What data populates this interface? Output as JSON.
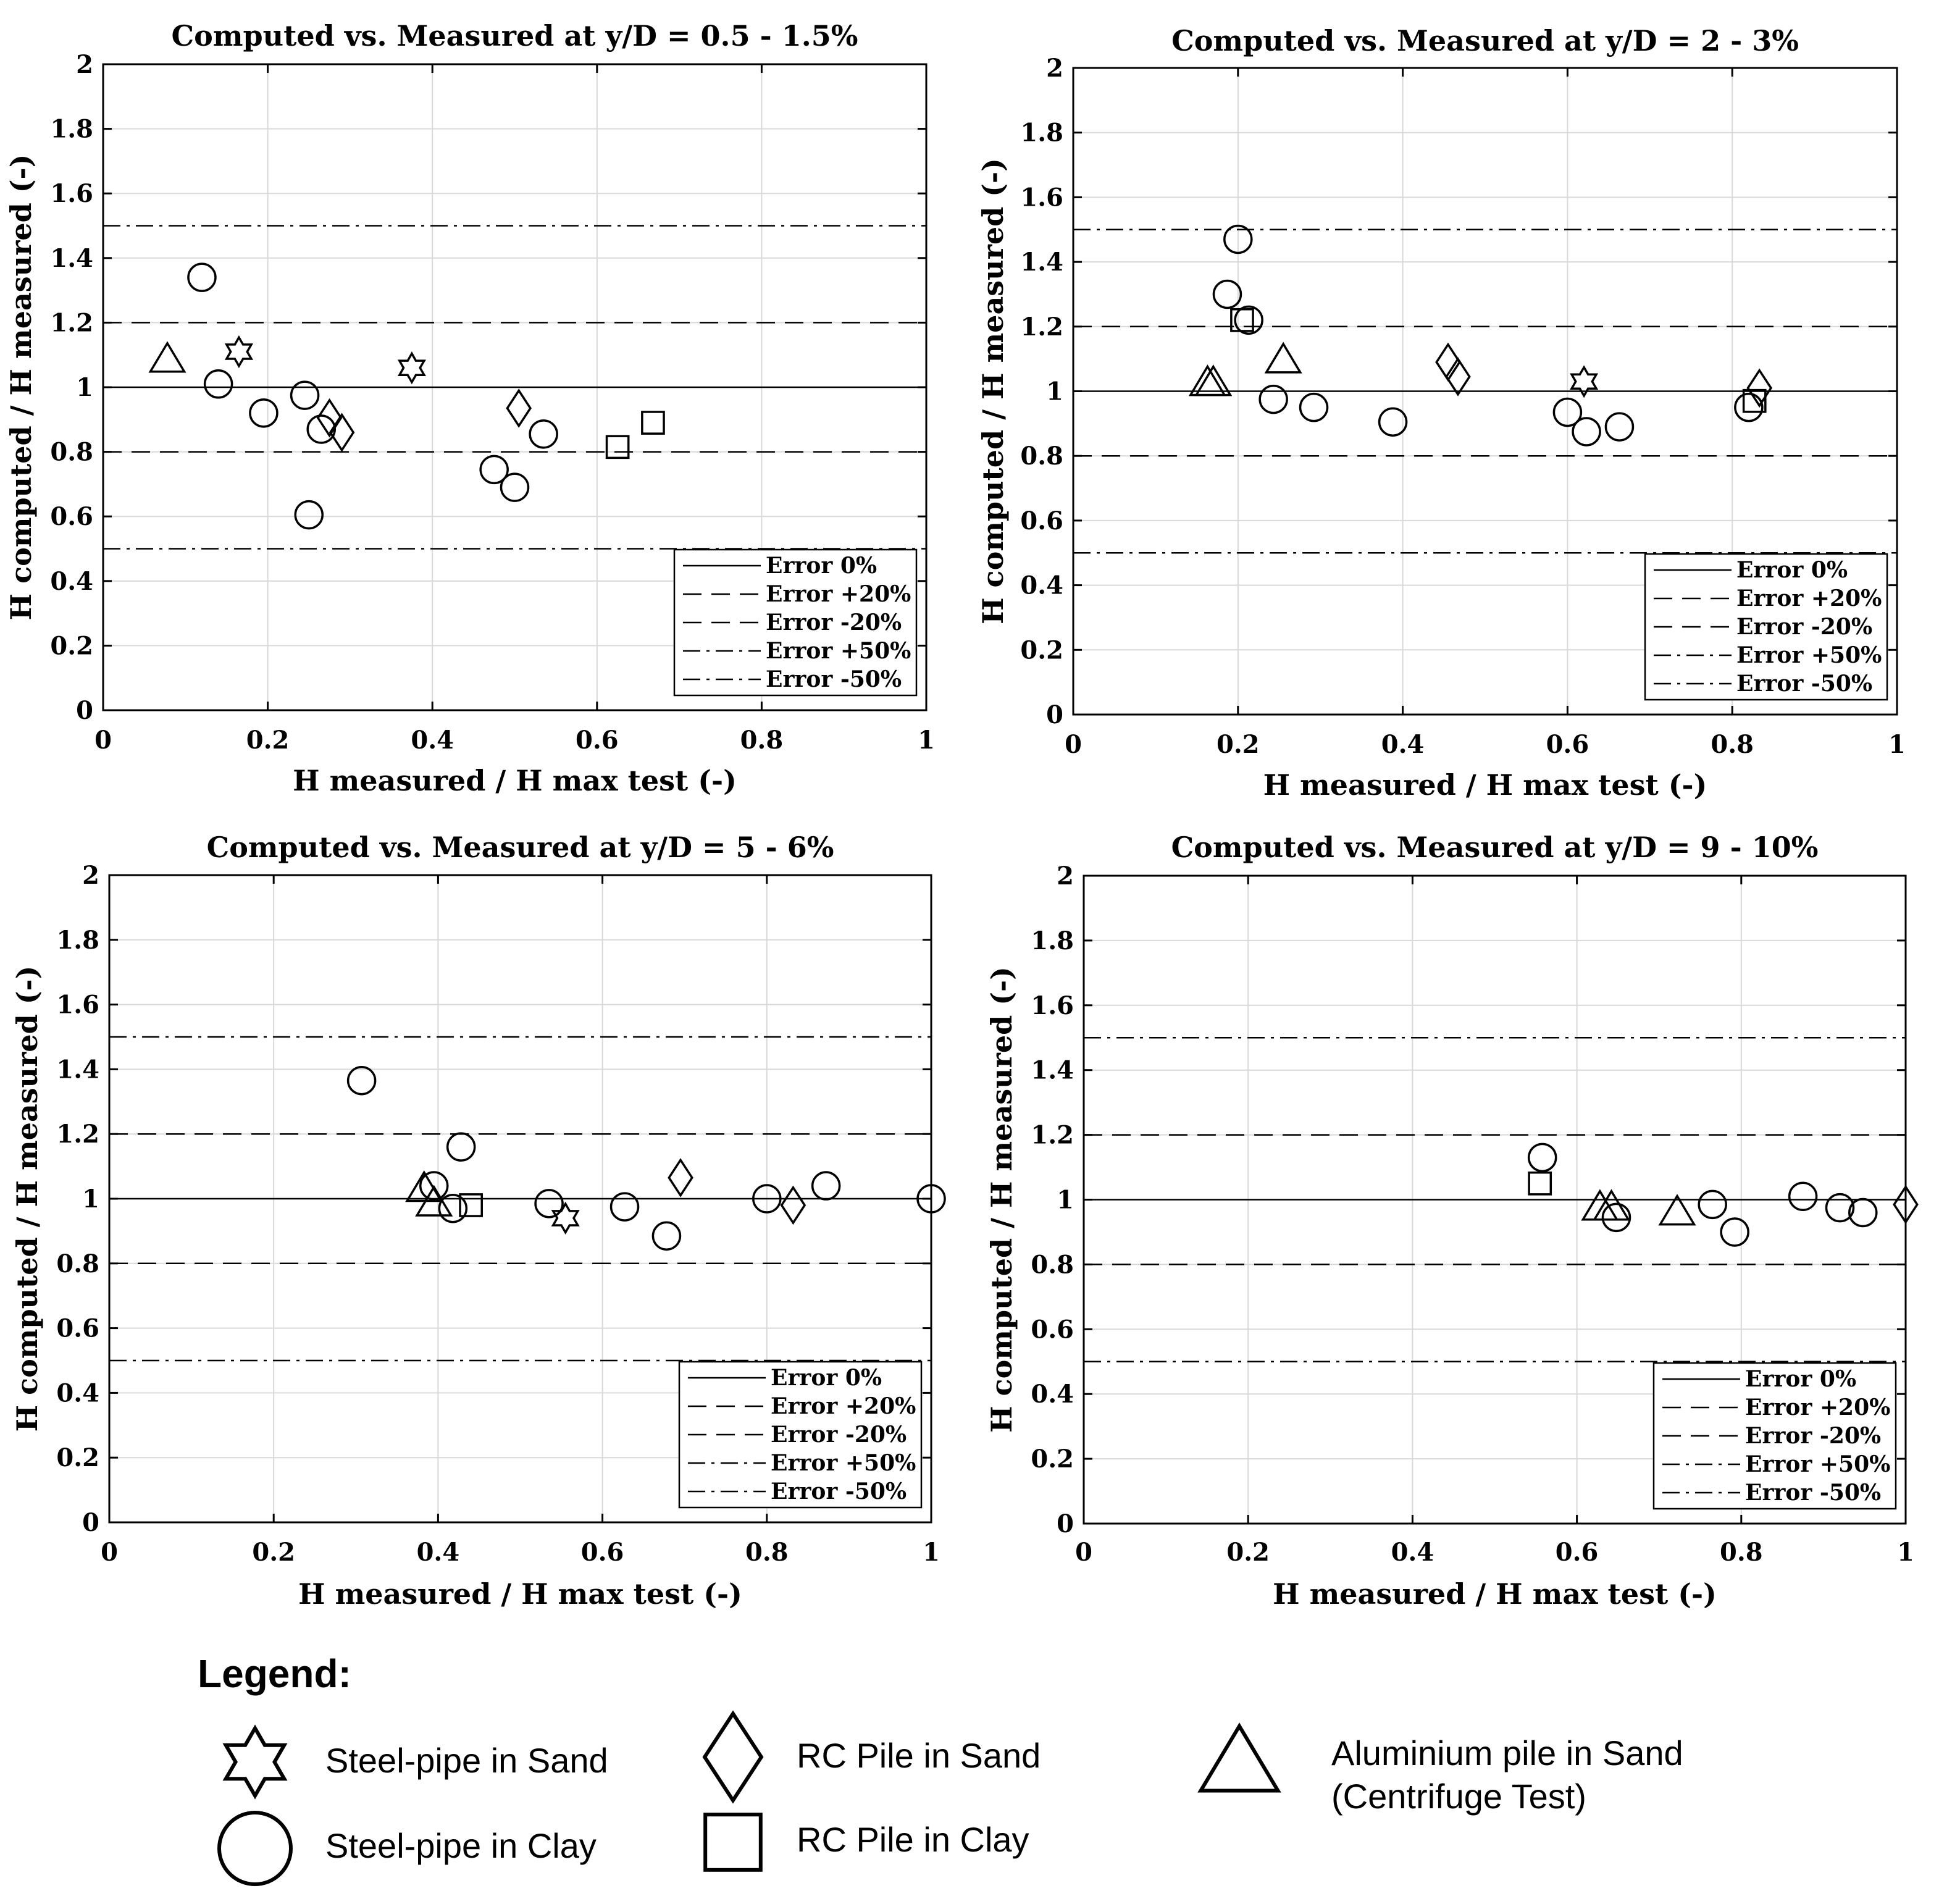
{
  "colors": {
    "ink": "#000000",
    "grid": "#d9d9d9",
    "background": "#ffffff"
  },
  "marker_types": {
    "star": "star-icon",
    "circle": "circle-icon",
    "diamond": "diamond-icon",
    "square": "square-icon",
    "triangle": "triangle-icon"
  },
  "reference_lines": [
    {
      "label": "Error 0%",
      "y": 1.0,
      "style": "solid"
    },
    {
      "label": "Error +20%",
      "y": 1.2,
      "style": "dashed"
    },
    {
      "label": "Error -20%",
      "y": 0.8,
      "style": "dashed"
    },
    {
      "label": "Error +50%",
      "y": 1.5,
      "style": "dashdot"
    },
    {
      "label": "Error -50%",
      "y": 0.5,
      "style": "dashdot"
    }
  ],
  "chart_data": [
    {
      "type": "scatter",
      "title": "Computed vs. Measured at y/D = 0.5 - 1.5%",
      "xlabel": "H measured / H max test (-)",
      "ylabel": "H computed / H measured (-)",
      "xlim": [
        0,
        1
      ],
      "ylim": [
        0,
        2
      ],
      "xticks": [
        0,
        0.2,
        0.4,
        0.6,
        0.8,
        1
      ],
      "xtick_labels": [
        "0",
        "0.2",
        "0.4",
        "0.6",
        "0.8",
        "1"
      ],
      "yticks": [
        0,
        0.2,
        0.4,
        0.6,
        0.8,
        1,
        1.2,
        1.4,
        1.6,
        1.8,
        2
      ],
      "ytick_labels": [
        "0",
        "0.2",
        "0.4",
        "0.6",
        "0.8",
        "1",
        "1.2",
        "1.4",
        "1.6",
        "1.8",
        "2"
      ],
      "grid": true,
      "legend_position": "bottom-right",
      "series": [
        {
          "name": "Steel-pipe in Sand",
          "marker": "star",
          "x": [
            0.165,
            0.375
          ],
          "y": [
            1.11,
            1.06
          ]
        },
        {
          "name": "Steel-pipe in Clay",
          "marker": "circle",
          "x": [
            0.12,
            0.14,
            0.195,
            0.245,
            0.265,
            0.25,
            0.475,
            0.5,
            0.535
          ],
          "y": [
            1.34,
            1.01,
            0.92,
            0.975,
            0.87,
            0.605,
            0.745,
            0.69,
            0.855
          ]
        },
        {
          "name": "RC Pile in Sand",
          "marker": "diamond",
          "x": [
            0.275,
            0.29,
            0.505
          ],
          "y": [
            0.905,
            0.86,
            0.935
          ]
        },
        {
          "name": "RC Pile in Clay",
          "marker": "square",
          "x": [
            0.625,
            0.668
          ],
          "y": [
            0.815,
            0.89
          ]
        },
        {
          "name": "Aluminium pile in Sand (Centrifuge Test)",
          "marker": "triangle",
          "x": [
            0.078
          ],
          "y": [
            1.09
          ]
        }
      ]
    },
    {
      "type": "scatter",
      "title": "Computed vs. Measured at y/D = 2 - 3%",
      "xlabel": "H measured / H max test (-)",
      "ylabel": "H computed / H measured (-)",
      "xlim": [
        0,
        1
      ],
      "ylim": [
        0,
        2
      ],
      "xticks": [
        0,
        0.2,
        0.4,
        0.6,
        0.8,
        1
      ],
      "xtick_labels": [
        "0",
        "0.2",
        "0.4",
        "0.6",
        "0.8",
        "1"
      ],
      "yticks": [
        0,
        0.2,
        0.4,
        0.6,
        0.8,
        1,
        1.2,
        1.4,
        1.6,
        1.8,
        2
      ],
      "ytick_labels": [
        "0",
        "0.2",
        "0.4",
        "0.6",
        "0.8",
        "1",
        "1.2",
        "1.4",
        "1.6",
        "1.8",
        "2"
      ],
      "grid": true,
      "legend_position": "bottom-right",
      "series": [
        {
          "name": "Steel-pipe in Sand",
          "marker": "star",
          "x": [
            0.62
          ],
          "y": [
            1.03
          ]
        },
        {
          "name": "Steel-pipe in Clay",
          "marker": "circle",
          "x": [
            0.2,
            0.187,
            0.213,
            0.243,
            0.292,
            0.388,
            0.6,
            0.623,
            0.663,
            0.82
          ],
          "y": [
            1.47,
            1.3,
            1.22,
            0.975,
            0.95,
            0.905,
            0.935,
            0.875,
            0.89,
            0.95
          ]
        },
        {
          "name": "RC Pile in Sand",
          "marker": "diamond",
          "x": [
            0.455,
            0.467,
            0.833
          ],
          "y": [
            1.09,
            1.045,
            1.01
          ]
        },
        {
          "name": "RC Pile in Clay",
          "marker": "square",
          "x": [
            0.205,
            0.827
          ],
          "y": [
            1.22,
            0.97
          ]
        },
        {
          "name": "Aluminium pile in Sand (Centrifuge Test)",
          "marker": "triangle",
          "x": [
            0.163,
            0.17,
            0.255
          ],
          "y": [
            1.03,
            1.03,
            1.1
          ]
        }
      ]
    },
    {
      "type": "scatter",
      "title": "Computed vs. Measured at y/D = 5 - 6%",
      "xlabel": "H measured / H max test (-)",
      "ylabel": "H computed / H measured (-)",
      "xlim": [
        0,
        1
      ],
      "ylim": [
        0,
        2
      ],
      "xticks": [
        0,
        0.2,
        0.4,
        0.6,
        0.8,
        1
      ],
      "xtick_labels": [
        "0",
        "0.2",
        "0.4",
        "0.6",
        "0.8",
        "1"
      ],
      "yticks": [
        0,
        0.2,
        0.4,
        0.6,
        0.8,
        1,
        1.2,
        1.4,
        1.6,
        1.8,
        2
      ],
      "ytick_labels": [
        "0",
        "0.2",
        "0.4",
        "0.6",
        "0.8",
        "1",
        "1.2",
        "1.4",
        "1.6",
        "1.8",
        "2"
      ],
      "grid": true,
      "legend_position": "bottom-right",
      "series": [
        {
          "name": "Steel-pipe in Sand",
          "marker": "star",
          "x": [
            0.555
          ],
          "y": [
            0.94
          ]
        },
        {
          "name": "Steel-pipe in Clay",
          "marker": "circle",
          "x": [
            0.307,
            0.395,
            0.428,
            0.418,
            0.535,
            0.627,
            0.678,
            0.8,
            0.872,
            1.0
          ],
          "y": [
            1.365,
            1.04,
            1.16,
            0.97,
            0.985,
            0.975,
            0.885,
            1.0,
            1.04,
            1.0
          ]
        },
        {
          "name": "RC Pile in Sand",
          "marker": "diamond",
          "x": [
            0.695,
            0.832
          ],
          "y": [
            1.065,
            0.98
          ]
        },
        {
          "name": "RC Pile in Clay",
          "marker": "square",
          "x": [
            0.44
          ],
          "y": [
            0.98
          ]
        },
        {
          "name": "Aluminium pile in Sand (Centrifuge Test)",
          "marker": "triangle",
          "x": [
            0.383,
            0.395
          ],
          "y": [
            1.035,
            0.99
          ]
        }
      ]
    },
    {
      "type": "scatter",
      "title": "Computed vs. Measured at y/D = 9 - 10%",
      "xlabel": "H measured / H max test (-)",
      "ylabel": "H computed / H measured (-)",
      "xlim": [
        0,
        1
      ],
      "ylim": [
        0,
        2
      ],
      "xticks": [
        0,
        0.2,
        0.4,
        0.6,
        0.8,
        1
      ],
      "xtick_labels": [
        "0",
        "0.2",
        "0.4",
        "0.6",
        "0.8",
        "1"
      ],
      "yticks": [
        0,
        0.2,
        0.4,
        0.6,
        0.8,
        1,
        1.2,
        1.4,
        1.6,
        1.8,
        2
      ],
      "ytick_labels": [
        "0",
        "0.2",
        "0.4",
        "0.6",
        "0.8",
        "1",
        "1.2",
        "1.4",
        "1.6",
        "1.8",
        "2"
      ],
      "grid": true,
      "legend_position": "bottom-right",
      "series": [
        {
          "name": "Steel-pipe in Sand",
          "marker": "star",
          "x": [],
          "y": []
        },
        {
          "name": "Steel-pipe in Clay",
          "marker": "circle",
          "x": [
            0.558,
            0.648,
            0.765,
            0.792,
            0.875,
            0.92,
            0.948
          ],
          "y": [
            1.13,
            0.945,
            0.985,
            0.9,
            1.01,
            0.975,
            0.96
          ]
        },
        {
          "name": "RC Pile in Sand",
          "marker": "diamond",
          "x": [
            1.0
          ],
          "y": [
            0.985
          ]
        },
        {
          "name": "RC Pile in Clay",
          "marker": "square",
          "x": [
            0.555
          ],
          "y": [
            1.05
          ]
        },
        {
          "name": "Aluminium pile in Sand (Centrifuge Test)",
          "marker": "triangle",
          "x": [
            0.628,
            0.642,
            0.722
          ],
          "y": [
            0.98,
            0.98,
            0.965
          ]
        }
      ]
    }
  ],
  "figure_legend": {
    "heading": "Legend:",
    "items": [
      {
        "marker": "star",
        "label_lines": [
          "Steel-pipe in Sand"
        ]
      },
      {
        "marker": "circle",
        "label_lines": [
          "Steel-pipe in Clay"
        ]
      },
      {
        "marker": "diamond",
        "label_lines": [
          "RC Pile in Sand"
        ]
      },
      {
        "marker": "square",
        "label_lines": [
          "RC Pile in Clay"
        ]
      },
      {
        "marker": "triangle",
        "label_lines": [
          "Aluminium  pile in Sand",
          "(Centrifuge Test)"
        ]
      }
    ]
  }
}
